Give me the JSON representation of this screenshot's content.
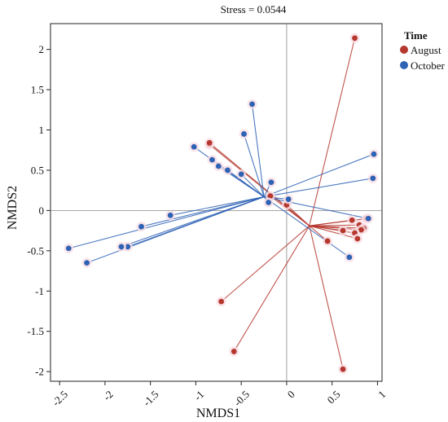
{
  "colors": {
    "August": "#b5372e",
    "October": "#2e62b5",
    "halo": "#f9dde4"
  },
  "chart_data": {
    "type": "scatter",
    "title": "Stress = 0.0544",
    "xlabel": "NMDS1",
    "ylabel": "NMDS2",
    "xlim": [
      -2.6,
      1.05
    ],
    "ylim": [
      -2.12,
      2.32
    ],
    "xticks": [
      -2.5,
      -2,
      -1.5,
      -1,
      -0.5,
      0,
      0.5,
      1
    ],
    "xtick_labels": [
      "-2.5",
      "-2",
      "-1.5",
      "-1",
      "-0.5",
      "0",
      "0.5",
      "1"
    ],
    "yticks": [
      2,
      1.5,
      1,
      0.5,
      0,
      -0.5,
      -1,
      -1.5,
      -2
    ],
    "ytick_labels": [
      "2",
      "1.5",
      "1",
      "0.5",
      "0",
      "-0.5",
      "-1",
      "-1.5",
      "-2"
    ],
    "reference_lines": {
      "x": 0,
      "y": 0
    },
    "legend": {
      "title": "Time",
      "position": "right",
      "entries": [
        "August",
        "October"
      ]
    },
    "series": [
      {
        "name": "August",
        "color": "#b5372e",
        "centroid": [
          0.25,
          -0.19
        ],
        "points": [
          [
            0.75,
            2.14
          ],
          [
            -0.85,
            0.82
          ],
          [
            -0.85,
            0.84
          ],
          [
            0.0,
            0.07
          ],
          [
            -0.18,
            0.18
          ],
          [
            0.72,
            -0.12
          ],
          [
            0.88,
            -0.1
          ],
          [
            0.8,
            -0.18
          ],
          [
            0.62,
            -0.25
          ],
          [
            0.85,
            -0.22
          ],
          [
            0.82,
            -0.24
          ],
          [
            0.75,
            -0.28
          ],
          [
            0.78,
            -0.35
          ],
          [
            0.45,
            -0.38
          ],
          [
            -0.72,
            -1.13
          ],
          [
            -0.58,
            -1.75
          ],
          [
            0.62,
            -1.97
          ]
        ]
      },
      {
        "name": "October",
        "color": "#2e62b5",
        "centroid": [
          -0.25,
          0.17
        ],
        "points": [
          [
            -0.38,
            1.32
          ],
          [
            -0.47,
            0.95
          ],
          [
            -1.02,
            0.79
          ],
          [
            -0.82,
            0.63
          ],
          [
            -0.75,
            0.55
          ],
          [
            -0.65,
            0.5
          ],
          [
            -0.5,
            0.45
          ],
          [
            -0.17,
            0.35
          ],
          [
            -0.2,
            0.1
          ],
          [
            0.02,
            0.14
          ],
          [
            0.96,
            0.7
          ],
          [
            0.95,
            0.4
          ],
          [
            0.9,
            -0.1
          ],
          [
            0.69,
            -0.58
          ],
          [
            -1.28,
            -0.06
          ],
          [
            -1.6,
            -0.2
          ],
          [
            -1.75,
            -0.45
          ],
          [
            -1.82,
            -0.45
          ],
          [
            -2.4,
            -0.47
          ],
          [
            -2.2,
            -0.65
          ]
        ]
      }
    ],
    "grid": false
  }
}
